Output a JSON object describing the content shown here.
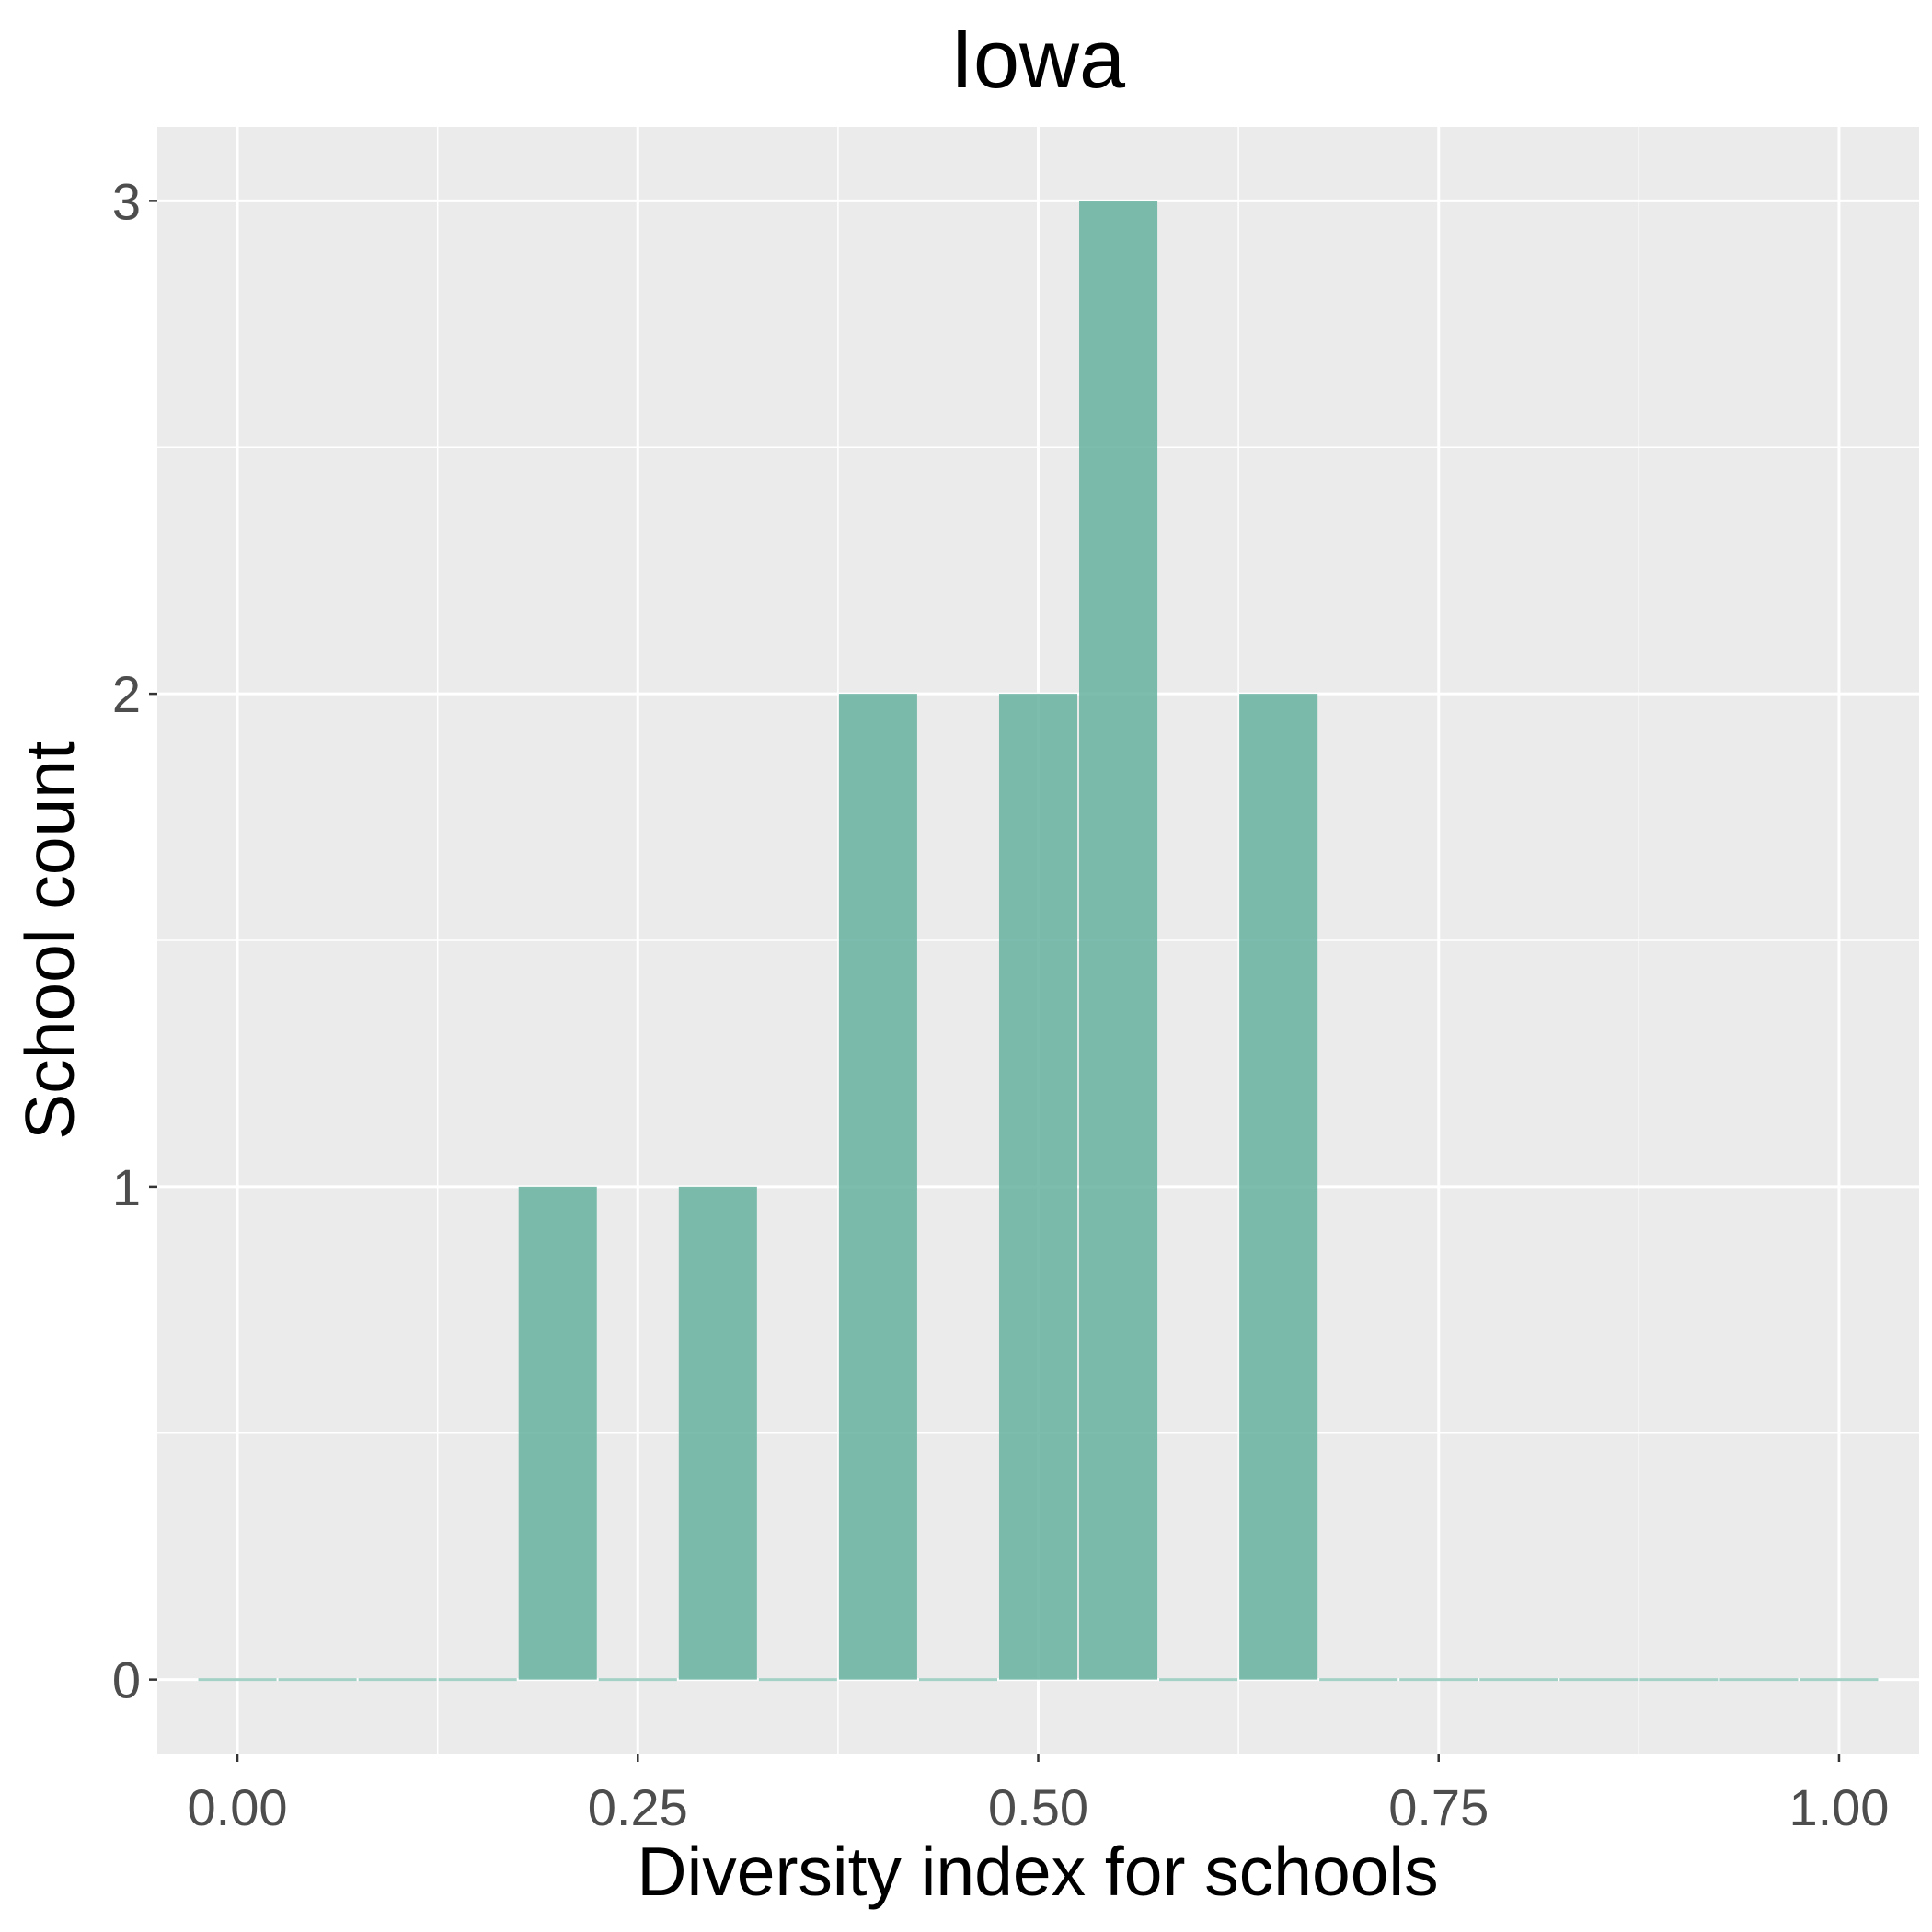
{
  "chart_data": {
    "type": "bar",
    "title": "Iowa",
    "xlabel": "Diversity index for schools",
    "ylabel": "School count",
    "xlim": [
      -0.05,
      1.05
    ],
    "ylim": [
      -0.15,
      3.15
    ],
    "x_ticks": [
      0.0,
      0.25,
      0.5,
      0.75,
      1.0
    ],
    "x_tick_labels": [
      "0.00",
      "0.25",
      "0.50",
      "0.75",
      "1.00"
    ],
    "y_ticks": [
      0,
      1,
      2,
      3
    ],
    "y_tick_labels": [
      "0",
      "1",
      "2",
      "3"
    ],
    "grid": true,
    "legend": "none",
    "bin_width": 0.05,
    "bins": [
      {
        "x": 0.0,
        "count": 0
      },
      {
        "x": 0.05,
        "count": 0
      },
      {
        "x": 0.1,
        "count": 0
      },
      {
        "x": 0.15,
        "count": 0
      },
      {
        "x": 0.2,
        "count": 1
      },
      {
        "x": 0.25,
        "count": 0
      },
      {
        "x": 0.3,
        "count": 1
      },
      {
        "x": 0.35,
        "count": 0
      },
      {
        "x": 0.4,
        "count": 2
      },
      {
        "x": 0.45,
        "count": 0
      },
      {
        "x": 0.5,
        "count": 2
      },
      {
        "x": 0.55,
        "count": 3
      },
      {
        "x": 0.6,
        "count": 0
      },
      {
        "x": 0.65,
        "count": 2
      },
      {
        "x": 0.7,
        "count": 0
      },
      {
        "x": 0.75,
        "count": 0
      },
      {
        "x": 0.8,
        "count": 0
      },
      {
        "x": 0.85,
        "count": 0
      },
      {
        "x": 0.9,
        "count": 0
      },
      {
        "x": 0.95,
        "count": 0
      },
      {
        "x": 1.0,
        "count": 0
      }
    ],
    "colors": {
      "bar": "#66b2a0",
      "panel": "#ebebeb",
      "grid_major": "#ffffff",
      "grid_minor": "#ffffff",
      "tick_label": "#4d4d4d"
    }
  }
}
